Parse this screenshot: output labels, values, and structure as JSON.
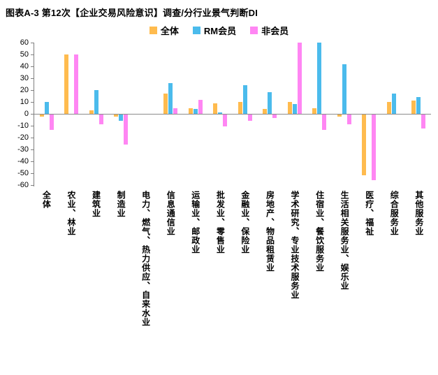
{
  "title": "图表A-3 第12次【企业交易风险意识】调查/分行业景气判断DI",
  "chart_data": {
    "type": "bar",
    "title": "第12次【企业交易风险意识】调查/分行业景气判断DI",
    "categories": [
      "全体",
      "农业、林业",
      "建筑业",
      "制造业",
      "电力、燃气、热力供应、自来水业",
      "信息通信业",
      "运输业、邮政业",
      "批发业、零售业",
      "金融业、保险业",
      "房地产、物品租赁业",
      "学术研究、专业技术服务业",
      "住宿业、餐饮服务业",
      "生活相关服务业、娱乐业",
      "医疗、福祉",
      "综合服务业",
      "其他服务业"
    ],
    "series": [
      {
        "name": "全体",
        "color": "#FFBB4E",
        "values": [
          -2,
          50,
          3,
          -2,
          0,
          17,
          5,
          9,
          10,
          4,
          10,
          5,
          -2,
          -51,
          10,
          11
        ]
      },
      {
        "name": "RM会员",
        "color": "#4BBBEC",
        "values": [
          10,
          0,
          20,
          -5,
          0,
          26,
          4,
          1,
          24,
          18,
          8,
          60,
          42,
          0,
          17,
          14
        ]
      },
      {
        "name": "非会员",
        "color": "#FF86F3",
        "values": [
          -13,
          50,
          -8,
          -25,
          0,
          5,
          12,
          -10,
          -5,
          -3,
          60,
          -13,
          -8,
          -55,
          0,
          -12
        ]
      }
    ],
    "ylim": [
      -60,
      60
    ],
    "yticks": [
      60,
      50,
      40,
      30,
      20,
      10,
      0,
      -10,
      -20,
      -30,
      -40,
      -50,
      -60
    ],
    "legend_position": "top",
    "grid": false,
    "xlabel": "",
    "ylabel": ""
  }
}
